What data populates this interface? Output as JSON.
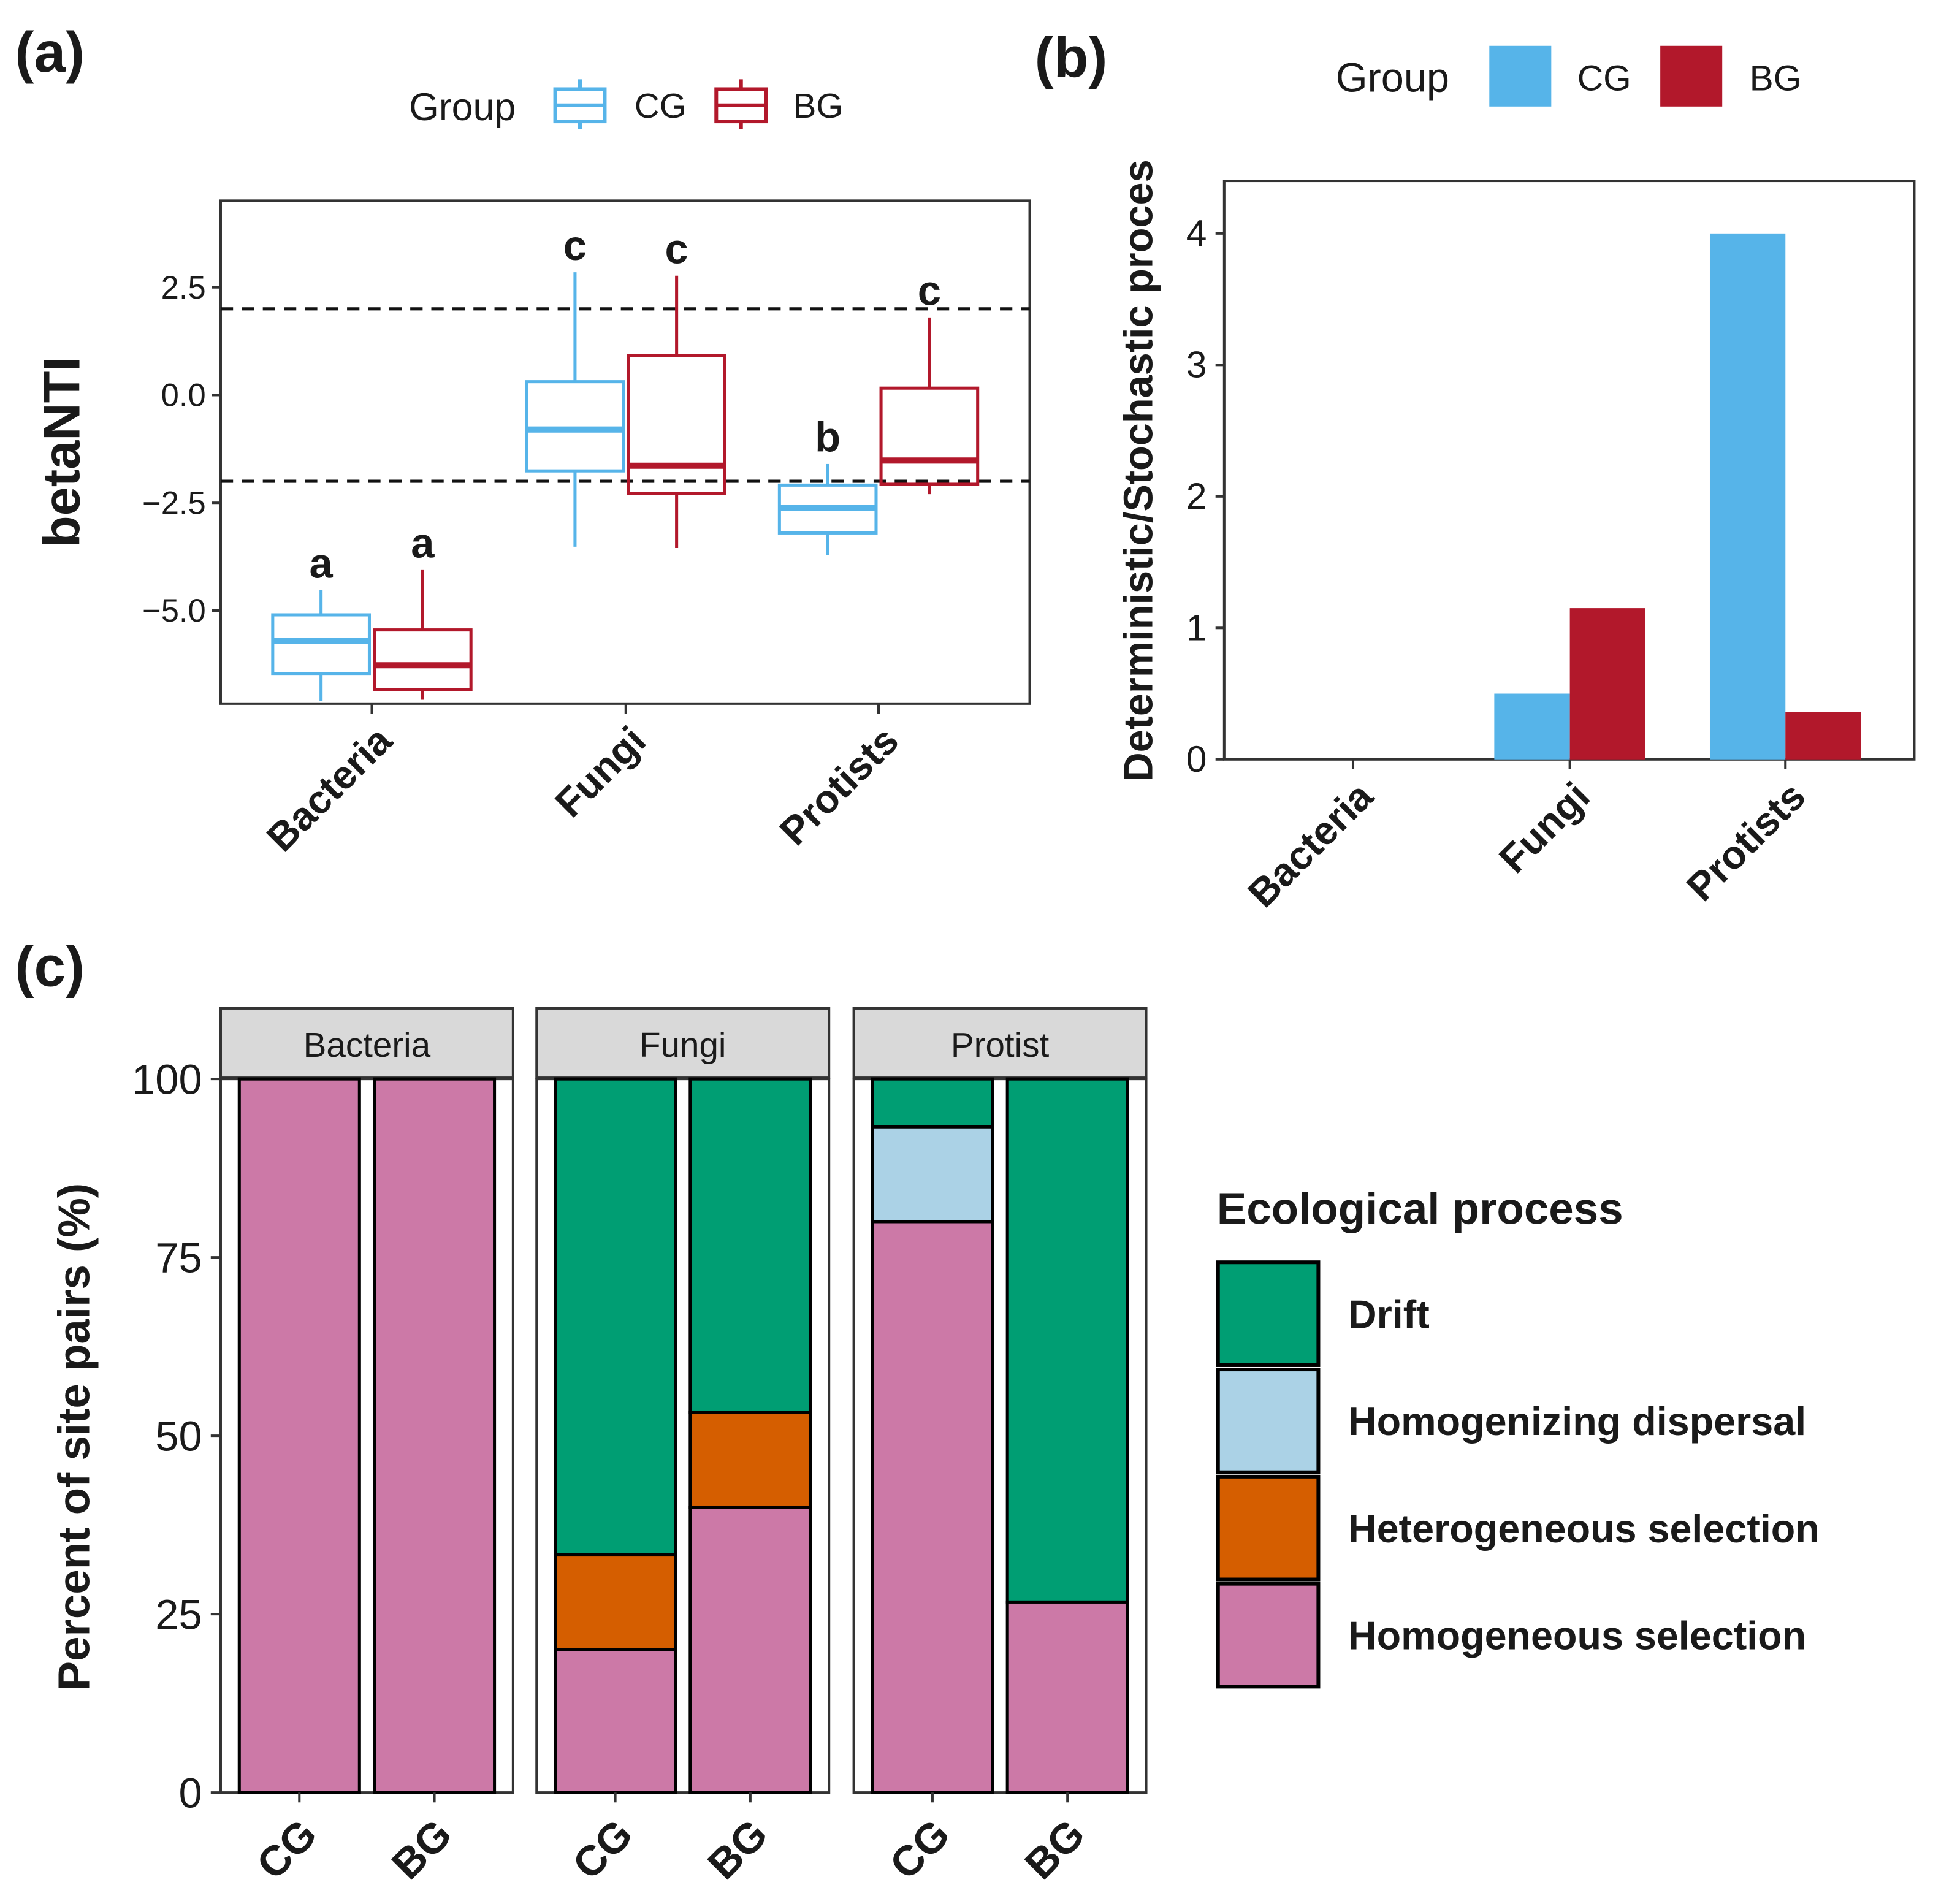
{
  "colors": {
    "CG": "#56B4E9",
    "BG": "#B2182B",
    "Drift": "#009E73",
    "Homogenizing dispersal": "#ABD2E6",
    "Heterogeneous selection": "#D55E00",
    "Homogeneous selection": "#CC79A7",
    "strip": "#D9D9D9"
  },
  "chart_data": [
    {
      "panel_label": "(a)",
      "type": "box",
      "ylabel": "betaNTI",
      "ylim": [
        -7.16,
        4.51
      ],
      "yticks": [
        2.5,
        0.0,
        -2.5,
        -5.0
      ],
      "ytick_labels": [
        "2.5",
        "0.0",
        "−2.5",
        "−5.0"
      ],
      "reference_lines": [
        2,
        -2
      ],
      "categories": [
        "Bacteria",
        "Fungi",
        "Protists"
      ],
      "legend": {
        "title": "Group",
        "entries": [
          "CG",
          "BG"
        ],
        "position": "top"
      },
      "series": [
        {
          "name": "CG",
          "boxes": [
            {
              "whisker_low": -7.1,
              "q1": -6.46,
              "median": -5.7,
              "q3": -5.1,
              "whisker_high": -4.53,
              "letter": "a"
            },
            {
              "whisker_low": -3.52,
              "q1": -1.76,
              "median": -0.8,
              "q3": 0.31,
              "whisker_high": 2.85,
              "letter": "c"
            },
            {
              "whisker_low": -3.71,
              "q1": -3.2,
              "median": -2.62,
              "q3": -2.09,
              "whisker_high": -1.6,
              "letter": "b"
            }
          ]
        },
        {
          "name": "BG",
          "boxes": [
            {
              "whisker_low": -7.07,
              "q1": -6.84,
              "median": -6.27,
              "q3": -5.45,
              "whisker_high": -4.06,
              "letter": "a"
            },
            {
              "whisker_low": -3.55,
              "q1": -2.28,
              "median": -1.64,
              "q3": 0.91,
              "whisker_high": 2.77,
              "letter": "c"
            },
            {
              "whisker_low": -2.3,
              "q1": -2.07,
              "median": -1.52,
              "q3": 0.16,
              "whisker_high": 1.8,
              "letter": "c"
            }
          ]
        }
      ]
    },
    {
      "panel_label": "(b)",
      "type": "bar",
      "ylabel": "Deterministic/Stochastic proces",
      "ylim": [
        0,
        4.4
      ],
      "yticks": [
        0,
        1,
        2,
        3,
        4
      ],
      "categories": [
        "Bacteria",
        "Fungi",
        "Protists"
      ],
      "legend": {
        "title": "Group",
        "entries": [
          "CG",
          "BG"
        ],
        "position": "top"
      },
      "series": [
        {
          "name": "CG",
          "values": [
            0,
            0.5,
            4.0
          ]
        },
        {
          "name": "BG",
          "values": [
            0,
            1.15,
            0.36
          ]
        }
      ]
    },
    {
      "panel_label": "(c)",
      "type": "stacked-bar",
      "ylabel": "Percent of site pairs (%)",
      "ylim": [
        0,
        100
      ],
      "yticks": [
        0,
        25,
        50,
        75,
        100
      ],
      "legend": {
        "title": "Ecological process",
        "entries": [
          "Drift",
          "Homogenizing dispersal",
          "Heterogeneous selection",
          "Homogeneous selection"
        ],
        "position": "right"
      },
      "facets": [
        {
          "name": "Bacteria",
          "bars": [
            {
              "group": "CG",
              "segments": {
                "Homogeneous selection": 100,
                "Heterogeneous selection": 0,
                "Homogenizing dispersal": 0,
                "Drift": 0
              }
            },
            {
              "group": "BG",
              "segments": {
                "Homogeneous selection": 100,
                "Heterogeneous selection": 0,
                "Homogenizing dispersal": 0,
                "Drift": 0
              }
            }
          ]
        },
        {
          "name": "Fungi",
          "bars": [
            {
              "group": "CG",
              "segments": {
                "Homogeneous selection": 20,
                "Heterogeneous selection": 13.3,
                "Homogenizing dispersal": 0,
                "Drift": 66.7
              }
            },
            {
              "group": "BG",
              "segments": {
                "Homogeneous selection": 40,
                "Heterogeneous selection": 13.3,
                "Homogenizing dispersal": 0,
                "Drift": 46.7
              }
            }
          ]
        },
        {
          "name": "Protist",
          "bars": [
            {
              "group": "CG",
              "segments": {
                "Homogeneous selection": 80,
                "Heterogeneous selection": 0,
                "Homogenizing dispersal": 13.3,
                "Drift": 6.7
              }
            },
            {
              "group": "BG",
              "segments": {
                "Homogeneous selection": 26.7,
                "Heterogeneous selection": 0,
                "Homogenizing dispersal": 0,
                "Drift": 73.3
              }
            }
          ]
        }
      ]
    }
  ]
}
